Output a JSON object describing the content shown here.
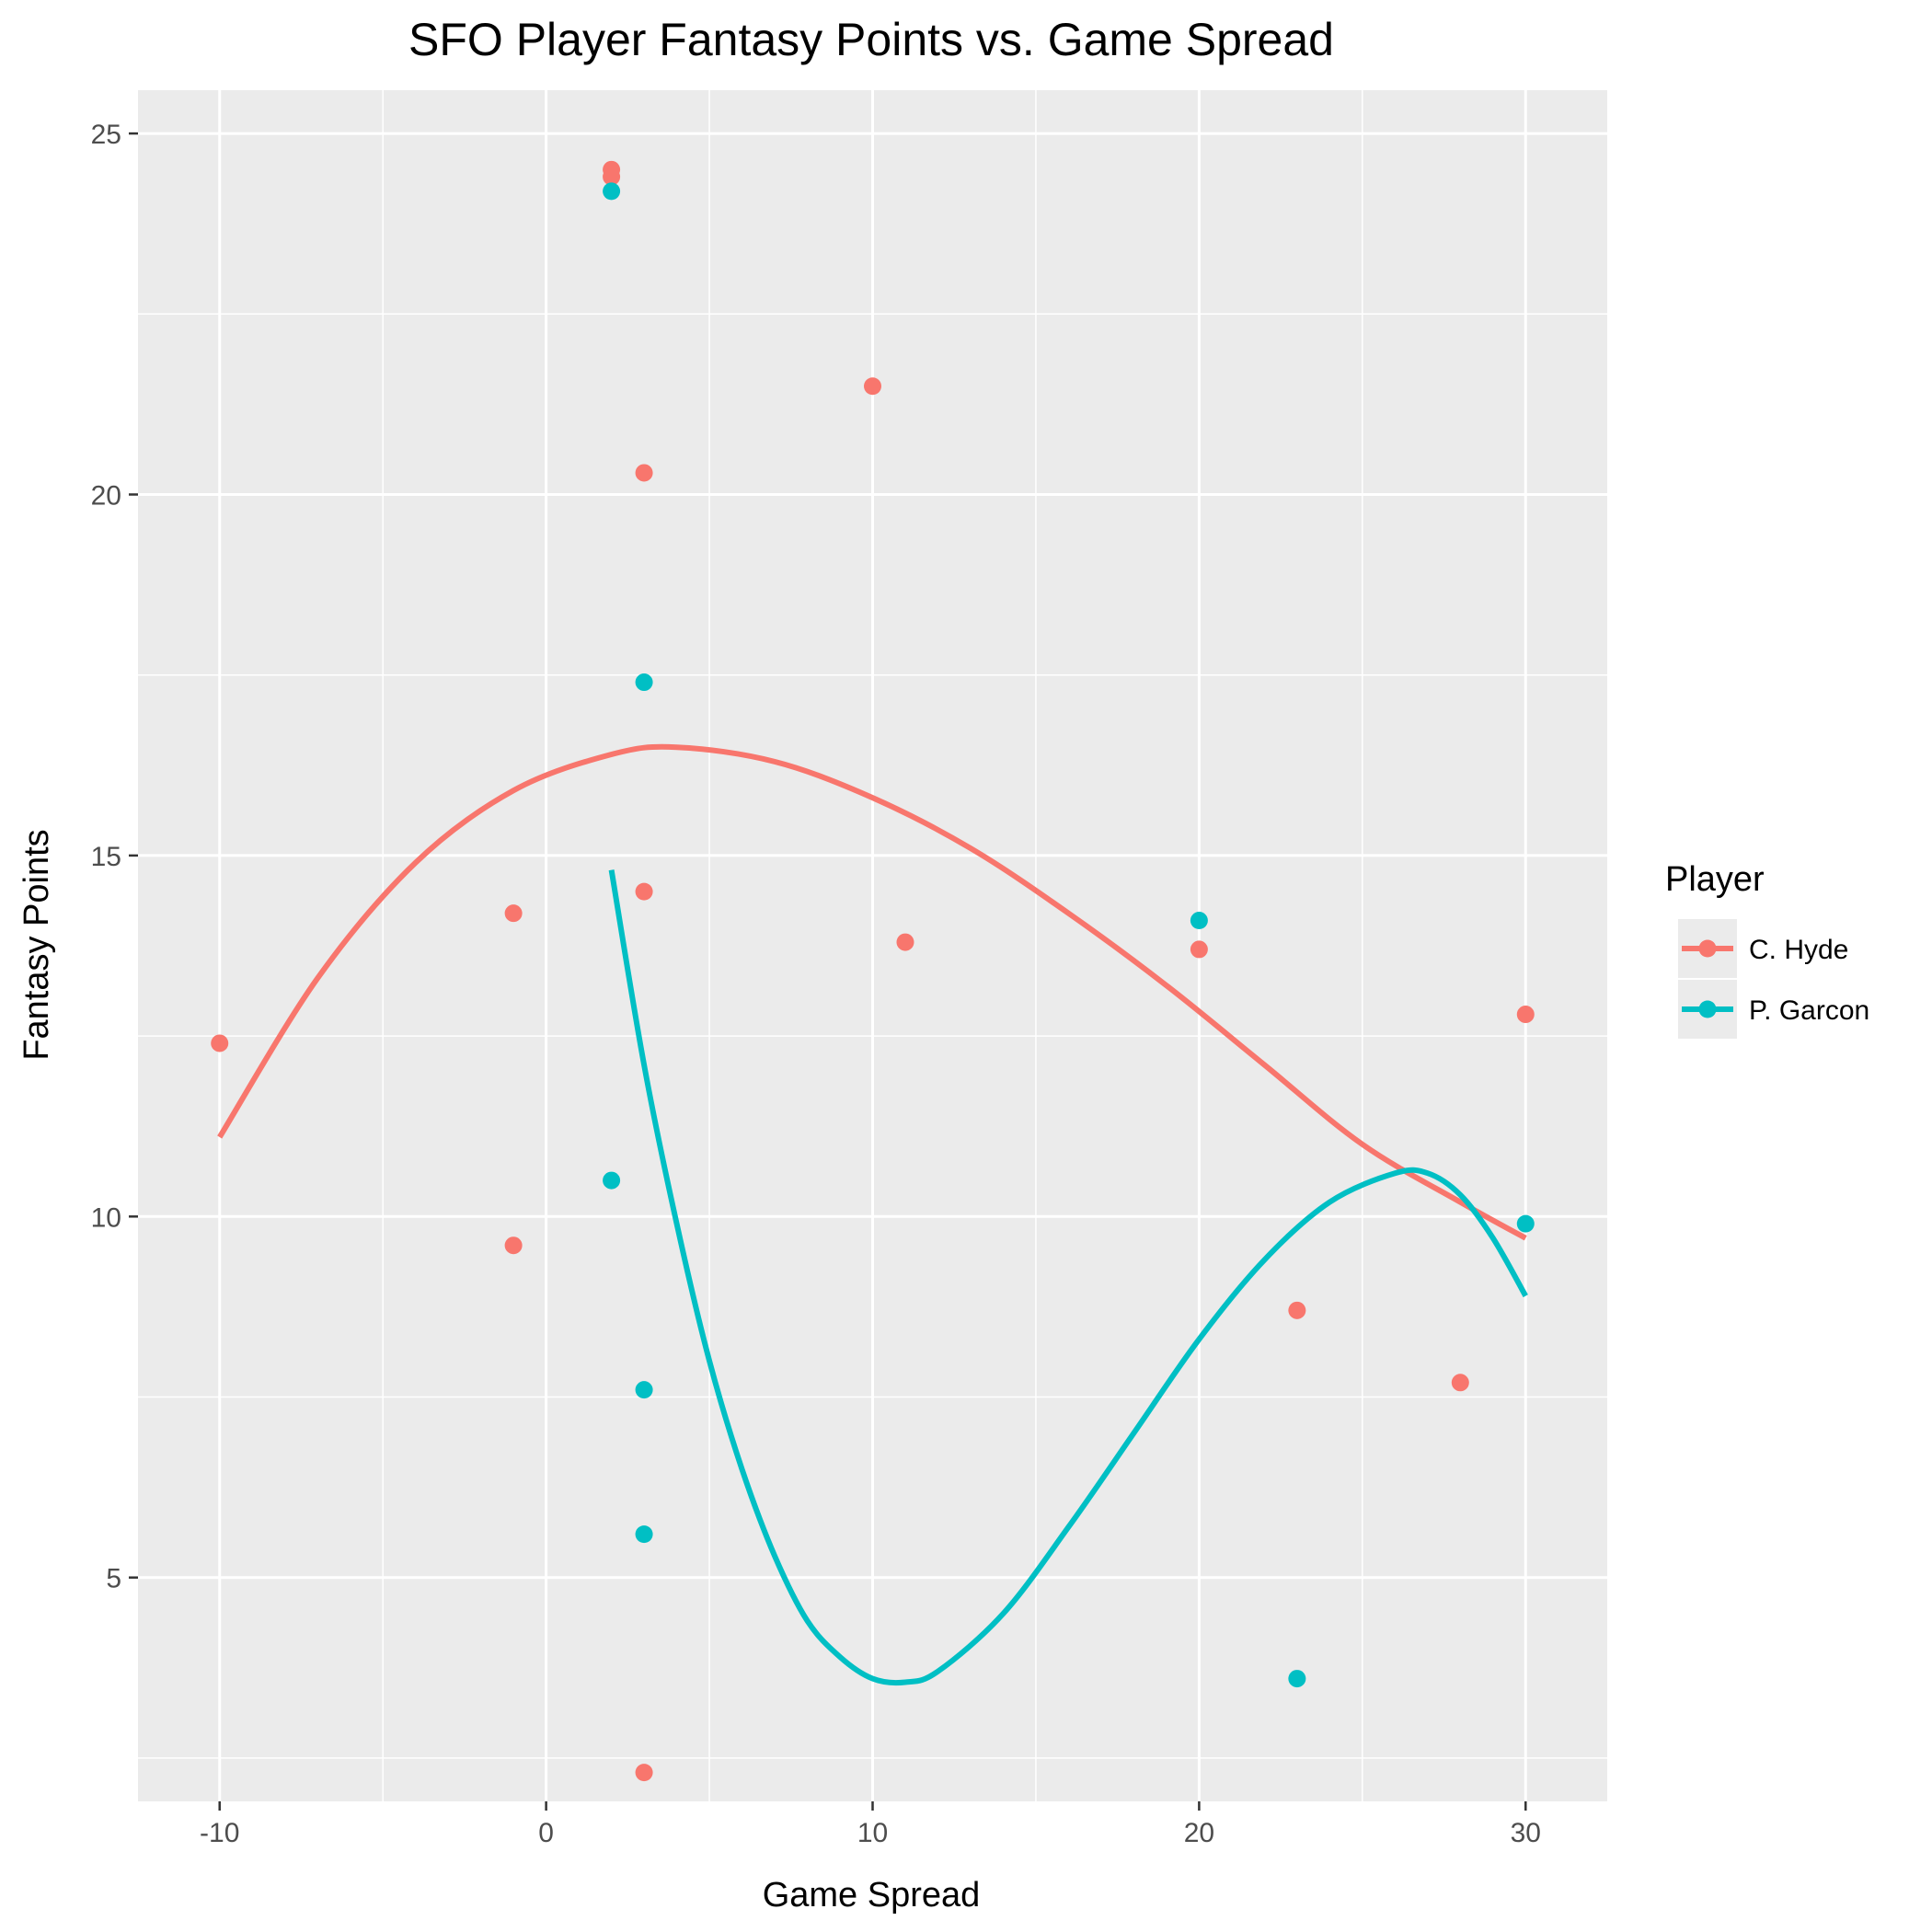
{
  "chart_data": {
    "type": "scatter",
    "title": "SFO Player Fantasy Points vs. Game Spread",
    "xlabel": "Game Spread",
    "ylabel": "Fantasy Points",
    "xlim": [
      -12.5,
      32.5
    ],
    "ylim": [
      1.9,
      25.6
    ],
    "x_ticks": [
      -10,
      0,
      10,
      20,
      30
    ],
    "y_ticks": [
      5,
      10,
      15,
      20,
      25
    ],
    "grid": true,
    "legend": {
      "title": "Player",
      "position": "right"
    },
    "series": [
      {
        "name": "C. Hyde",
        "color": "#F8766D",
        "points": [
          {
            "x": -10,
            "y": 12.4
          },
          {
            "x": -1,
            "y": 14.2
          },
          {
            "x": -1,
            "y": 9.6
          },
          {
            "x": 2,
            "y": 24.5
          },
          {
            "x": 2,
            "y": 24.4
          },
          {
            "x": 3,
            "y": 20.3
          },
          {
            "x": 3,
            "y": 14.5
          },
          {
            "x": 3,
            "y": 2.3
          },
          {
            "x": 10,
            "y": 21.5
          },
          {
            "x": 11,
            "y": 13.8
          },
          {
            "x": 20,
            "y": 13.7
          },
          {
            "x": 23,
            "y": 8.7
          },
          {
            "x": 28,
            "y": 7.7
          },
          {
            "x": 30,
            "y": 12.8
          }
        ],
        "trend": {
          "method": "smooth",
          "values": [
            {
              "x": -10,
              "y": 11.1
            },
            {
              "x": -7,
              "y": 13.3
            },
            {
              "x": -4,
              "y": 14.9
            },
            {
              "x": -1,
              "y": 15.9
            },
            {
              "x": 2,
              "y": 16.4
            },
            {
              "x": 4,
              "y": 16.5
            },
            {
              "x": 7,
              "y": 16.3
            },
            {
              "x": 10,
              "y": 15.8
            },
            {
              "x": 13,
              "y": 15.1
            },
            {
              "x": 16,
              "y": 14.2
            },
            {
              "x": 19,
              "y": 13.2
            },
            {
              "x": 22,
              "y": 12.1
            },
            {
              "x": 25,
              "y": 11.0
            },
            {
              "x": 28,
              "y": 10.2
            },
            {
              "x": 30,
              "y": 9.7
            }
          ]
        }
      },
      {
        "name": "P. Garcon",
        "color": "#00BFC4",
        "points": [
          {
            "x": 2,
            "y": 24.2
          },
          {
            "x": 2,
            "y": 10.5
          },
          {
            "x": 3,
            "y": 17.4
          },
          {
            "x": 3,
            "y": 7.6
          },
          {
            "x": 3,
            "y": 5.6
          },
          {
            "x": 20,
            "y": 14.1
          },
          {
            "x": 23,
            "y": 3.6
          },
          {
            "x": 30,
            "y": 9.9
          }
        ],
        "trend": {
          "method": "smooth",
          "values": [
            {
              "x": 2,
              "y": 14.8
            },
            {
              "x": 3,
              "y": 12.1
            },
            {
              "x": 4,
              "y": 9.9
            },
            {
              "x": 5,
              "y": 8.0
            },
            {
              "x": 6,
              "y": 6.5
            },
            {
              "x": 7,
              "y": 5.3
            },
            {
              "x": 8,
              "y": 4.4
            },
            {
              "x": 9,
              "y": 3.9
            },
            {
              "x": 10,
              "y": 3.6
            },
            {
              "x": 11,
              "y": 3.55
            },
            {
              "x": 12,
              "y": 3.7
            },
            {
              "x": 14,
              "y": 4.5
            },
            {
              "x": 16,
              "y": 5.7
            },
            {
              "x": 18,
              "y": 7.0
            },
            {
              "x": 20,
              "y": 8.3
            },
            {
              "x": 22,
              "y": 9.4
            },
            {
              "x": 24,
              "y": 10.2
            },
            {
              "x": 26,
              "y": 10.6
            },
            {
              "x": 27,
              "y": 10.6
            },
            {
              "x": 28,
              "y": 10.3
            },
            {
              "x": 29,
              "y": 9.7
            },
            {
              "x": 30,
              "y": 8.9
            }
          ]
        }
      }
    ]
  }
}
